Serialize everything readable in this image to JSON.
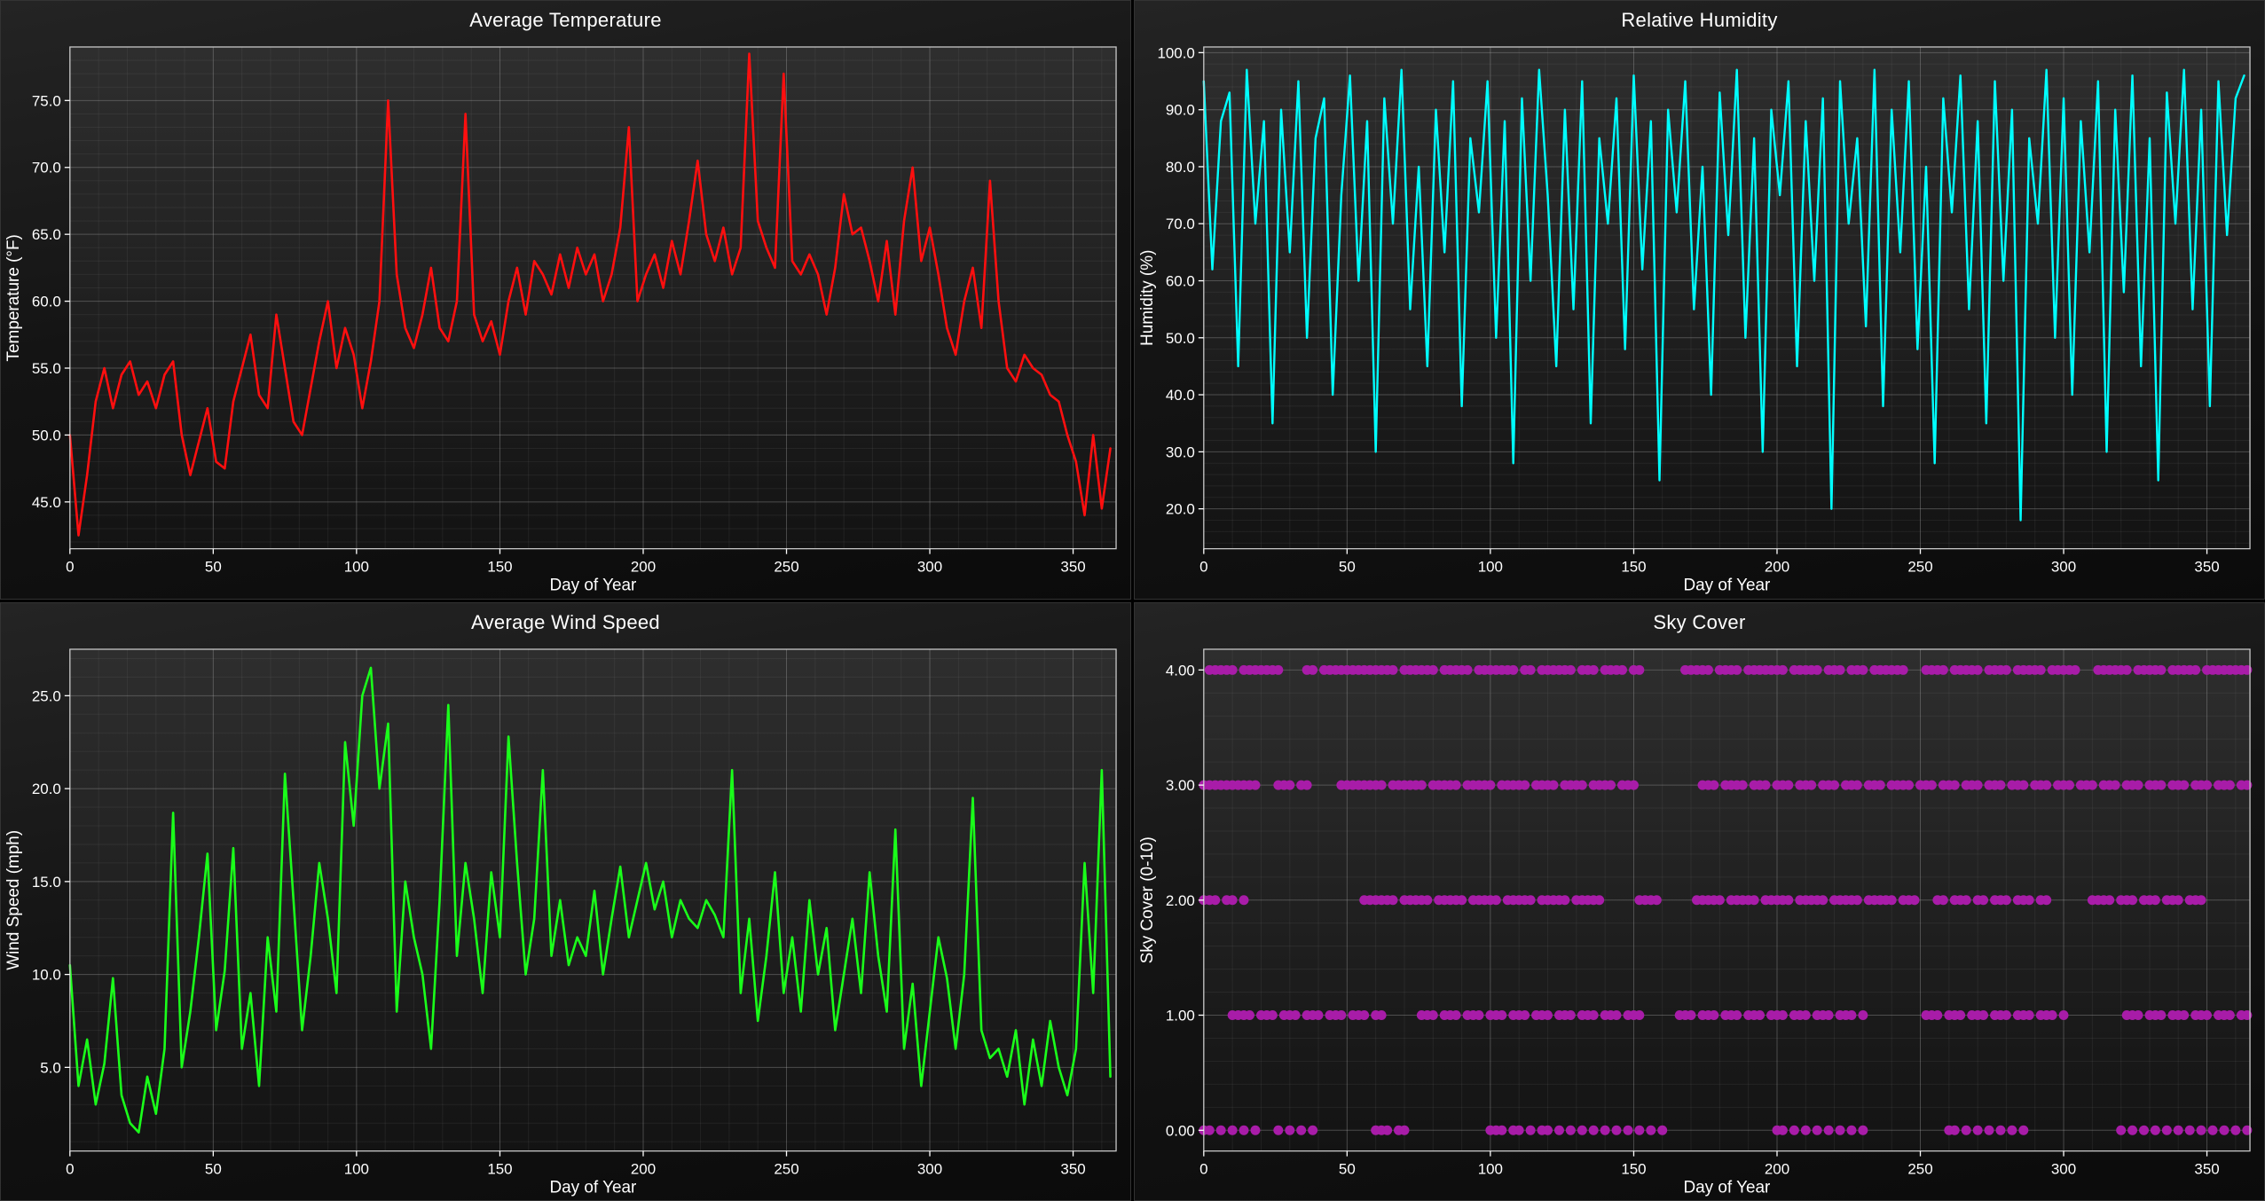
{
  "page": {
    "background": "#000000"
  },
  "chart_data": [
    {
      "id": "average-temperature",
      "type": "line",
      "title": "Average Temperature",
      "xlabel": "Day of Year",
      "ylabel": "Temperature (°F)",
      "color": "#ff0f0f",
      "line_width": 2.6,
      "xlim": [
        0,
        365
      ],
      "ylim": [
        41.5,
        79
      ],
      "xticks": [
        0,
        50,
        100,
        150,
        200,
        250,
        300,
        350
      ],
      "xtick_labels": [
        "0",
        "50",
        "100",
        "150",
        "200",
        "250",
        "300",
        "350"
      ],
      "yticks": [
        45,
        50,
        55,
        60,
        65,
        70,
        75
      ],
      "ytick_labels": [
        "45.0",
        "50.0",
        "55.0",
        "60.0",
        "65.0",
        "70.0",
        "75.0"
      ],
      "xminor": 10,
      "yminor": 1,
      "x_start": 0,
      "x_step": 3,
      "y": [
        50,
        42.5,
        47,
        52.5,
        55,
        52,
        54.5,
        55.5,
        53,
        54,
        52,
        54.5,
        55.5,
        50,
        47,
        49.5,
        52,
        48,
        47.5,
        52.5,
        55,
        57.5,
        53,
        52,
        59,
        55,
        51,
        50,
        53.5,
        57,
        60,
        55,
        58,
        56,
        52,
        55.5,
        60,
        75,
        62,
        58,
        56.5,
        59,
        62.5,
        58,
        57,
        60,
        74,
        59,
        57,
        58.5,
        56,
        60,
        62.5,
        59,
        63,
        62,
        60.5,
        63.5,
        61,
        64,
        62,
        63.5,
        60,
        62,
        65.5,
        73,
        60,
        62,
        63.5,
        61,
        64.5,
        62,
        66,
        70.5,
        65,
        63,
        65.5,
        62,
        64,
        78.5,
        66,
        64,
        62.5,
        77,
        63,
        62,
        63.5,
        62,
        59,
        62.5,
        68,
        65,
        65.5,
        63,
        60,
        64.5,
        59,
        66,
        70,
        63,
        65.5,
        62,
        58,
        56,
        60,
        62.5,
        58,
        69,
        60,
        55,
        54,
        56,
        55,
        54.5,
        53,
        52.5,
        50,
        48,
        44,
        50,
        44.5,
        49
      ]
    },
    {
      "id": "relative-humidity",
      "type": "line",
      "title": "Relative Humidity",
      "xlabel": "Day of Year",
      "ylabel": "Humidity (%)",
      "color": "#00ffff",
      "line_width": 2.4,
      "xlim": [
        0,
        365
      ],
      "ylim": [
        13,
        101
      ],
      "xticks": [
        0,
        50,
        100,
        150,
        200,
        250,
        300,
        350
      ],
      "xtick_labels": [
        "0",
        "50",
        "100",
        "150",
        "200",
        "250",
        "300",
        "350"
      ],
      "yticks": [
        20,
        30,
        40,
        50,
        60,
        70,
        80,
        90,
        100
      ],
      "ytick_labels": [
        "20.0",
        "30.0",
        "40.0",
        "50.0",
        "60.0",
        "70.0",
        "80.0",
        "90.0",
        "100.0"
      ],
      "xminor": 10,
      "yminor": 2,
      "x_start": 0,
      "x_step": 3,
      "y": [
        95,
        62,
        88,
        93,
        45,
        97,
        70,
        88,
        35,
        90,
        65,
        95,
        50,
        85,
        92,
        40,
        75,
        96,
        60,
        88,
        30,
        92,
        70,
        97,
        55,
        80,
        45,
        90,
        65,
        95,
        38,
        85,
        72,
        95,
        50,
        88,
        28,
        92,
        60,
        97,
        75,
        45,
        90,
        55,
        95,
        35,
        85,
        70,
        92,
        48,
        96,
        62,
        88,
        25,
        90,
        72,
        95,
        55,
        80,
        40,
        93,
        68,
        97,
        50,
        85,
        30,
        90,
        75,
        95,
        45,
        88,
        60,
        92,
        20,
        95,
        70,
        85,
        52,
        97,
        38,
        90,
        65,
        95,
        48,
        80,
        28,
        92,
        72,
        96,
        55,
        88,
        35,
        95,
        60,
        90,
        18,
        85,
        70,
        97,
        50,
        92,
        40,
        88,
        65,
        95,
        30,
        90,
        58,
        96,
        45,
        85,
        25,
        93,
        70,
        97,
        55,
        90,
        38,
        95,
        68,
        92,
        96
      ]
    },
    {
      "id": "average-wind-speed",
      "type": "line",
      "title": "Average Wind Speed",
      "xlabel": "Day of Year",
      "ylabel": "Wind Speed (mph)",
      "color": "#1aff1a",
      "line_width": 2.6,
      "xlim": [
        0,
        365
      ],
      "ylim": [
        0.5,
        27.5
      ],
      "xticks": [
        0,
        50,
        100,
        150,
        200,
        250,
        300,
        350
      ],
      "xtick_labels": [
        "0",
        "50",
        "100",
        "150",
        "200",
        "250",
        "300",
        "350"
      ],
      "yticks": [
        5,
        10,
        15,
        20,
        25
      ],
      "ytick_labels": [
        "5.0",
        "10.0",
        "15.0",
        "20.0",
        "25.0"
      ],
      "xminor": 10,
      "yminor": 1,
      "x_start": 0,
      "x_step": 3,
      "y": [
        10.5,
        4,
        6.5,
        3,
        5.2,
        9.8,
        3.5,
        2,
        1.5,
        4.5,
        2.5,
        6,
        18.7,
        5,
        8,
        12,
        16.5,
        7,
        10.2,
        16.8,
        6,
        9,
        4,
        12,
        8,
        20.8,
        14,
        7,
        11,
        16,
        13,
        9,
        22.5,
        18,
        25,
        26.5,
        20,
        23.5,
        8,
        15,
        12,
        10,
        6,
        14,
        24.5,
        11,
        16,
        13,
        9,
        15.5,
        12,
        22.8,
        16,
        10,
        13,
        21,
        11,
        14,
        10.5,
        12,
        11,
        14.5,
        10,
        13,
        15.8,
        12,
        14,
        16,
        13.5,
        15,
        12,
        14,
        13,
        12.5,
        14,
        13.2,
        12,
        21,
        9,
        13,
        7.5,
        11,
        15.5,
        9,
        12,
        8,
        14,
        10,
        12.5,
        7,
        10,
        13,
        9,
        15.5,
        11,
        8,
        17.8,
        6,
        9.5,
        4,
        8,
        12,
        9.8,
        6,
        10,
        19.5,
        7,
        5.5,
        6,
        4.5,
        7,
        3,
        6.5,
        4,
        7.5,
        5,
        3.5,
        6,
        16,
        9,
        21,
        4.5
      ]
    },
    {
      "id": "sky-cover",
      "type": "scatter",
      "title": "Sky Cover",
      "xlabel": "Day of Year",
      "ylabel": "Sky Cover (0-10)",
      "color": "#a81ca8",
      "marker_radius": 5.5,
      "xlim": [
        0,
        365
      ],
      "ylim": [
        -0.18,
        4.18
      ],
      "xticks": [
        0,
        50,
        100,
        150,
        200,
        250,
        300,
        350
      ],
      "xtick_labels": [
        "0",
        "50",
        "100",
        "150",
        "200",
        "250",
        "300",
        "350"
      ],
      "yticks": [
        0,
        1,
        2,
        3,
        4
      ],
      "ytick_labels": [
        "0.00",
        "1.00",
        "2.00",
        "3.00",
        "4.00"
      ],
      "xminor": 10,
      "yminor": 0.2,
      "levels": {
        "4": [
          2,
          4,
          6,
          8,
          10,
          14,
          16,
          18,
          20,
          22,
          24,
          26,
          36,
          38,
          42,
          44,
          46,
          48,
          50,
          52,
          54,
          56,
          58,
          60,
          62,
          64,
          66,
          70,
          72,
          74,
          76,
          78,
          80,
          84,
          86,
          88,
          90,
          92,
          96,
          98,
          100,
          102,
          104,
          106,
          108,
          112,
          114,
          118,
          120,
          122,
          124,
          126,
          128,
          132,
          134,
          136,
          140,
          142,
          144,
          146,
          150,
          152,
          168,
          170,
          172,
          174,
          176,
          180,
          182,
          184,
          186,
          190,
          192,
          194,
          196,
          198,
          200,
          202,
          206,
          208,
          210,
          212,
          214,
          218,
          220,
          222,
          226,
          228,
          230,
          234,
          236,
          238,
          240,
          242,
          244,
          252,
          254,
          256,
          258,
          262,
          264,
          266,
          268,
          270,
          274,
          276,
          278,
          280,
          284,
          286,
          288,
          290,
          292,
          296,
          298,
          300,
          302,
          304,
          312,
          314,
          316,
          318,
          320,
          322,
          326,
          328,
          330,
          332,
          334,
          338,
          340,
          342,
          344,
          346,
          350,
          352,
          354,
          356,
          358,
          360,
          362,
          364
        ],
        "3": [
          0,
          2,
          4,
          6,
          8,
          10,
          12,
          14,
          16,
          18,
          26,
          28,
          30,
          34,
          36,
          48,
          50,
          52,
          54,
          56,
          58,
          60,
          62,
          66,
          68,
          70,
          72,
          74,
          76,
          80,
          82,
          84,
          86,
          88,
          92,
          94,
          96,
          98,
          100,
          104,
          106,
          108,
          110,
          112,
          116,
          118,
          120,
          122,
          126,
          128,
          130,
          132,
          136,
          138,
          140,
          142,
          146,
          148,
          150,
          174,
          176,
          178,
          182,
          184,
          186,
          188,
          192,
          194,
          196,
          200,
          202,
          204,
          208,
          210,
          212,
          216,
          218,
          220,
          224,
          226,
          228,
          232,
          234,
          236,
          240,
          242,
          244,
          246,
          250,
          252,
          254,
          258,
          260,
          262,
          266,
          268,
          270,
          274,
          276,
          278,
          282,
          284,
          286,
          290,
          292,
          294,
          298,
          300,
          302,
          306,
          308,
          310,
          314,
          316,
          318,
          322,
          324,
          326,
          330,
          332,
          334,
          338,
          340,
          342,
          346,
          348,
          350,
          354,
          356,
          358,
          362,
          364
        ],
        "2": [
          0,
          2,
          4,
          8,
          10,
          14,
          56,
          58,
          60,
          62,
          64,
          66,
          70,
          72,
          74,
          76,
          78,
          82,
          84,
          86,
          88,
          90,
          94,
          96,
          98,
          100,
          102,
          106,
          108,
          110,
          112,
          114,
          118,
          120,
          122,
          124,
          126,
          130,
          132,
          134,
          136,
          138,
          152,
          154,
          156,
          158,
          172,
          174,
          176,
          178,
          180,
          184,
          186,
          188,
          190,
          192,
          196,
          198,
          200,
          202,
          204,
          208,
          210,
          212,
          214,
          216,
          220,
          222,
          224,
          226,
          228,
          232,
          234,
          236,
          238,
          240,
          244,
          246,
          248,
          256,
          258,
          262,
          264,
          266,
          270,
          272,
          276,
          278,
          280,
          284,
          286,
          288,
          292,
          294,
          310,
          312,
          314,
          316,
          320,
          322,
          324,
          328,
          330,
          332,
          336,
          338,
          340,
          344,
          346,
          348
        ],
        "1": [
          10,
          12,
          14,
          16,
          20,
          22,
          24,
          28,
          30,
          32,
          36,
          38,
          40,
          44,
          46,
          48,
          52,
          54,
          56,
          60,
          62,
          76,
          78,
          80,
          84,
          86,
          88,
          92,
          94,
          96,
          100,
          102,
          104,
          108,
          110,
          112,
          116,
          118,
          120,
          124,
          126,
          128,
          132,
          134,
          136,
          140,
          142,
          144,
          148,
          150,
          152,
          166,
          168,
          170,
          174,
          176,
          178,
          182,
          184,
          186,
          190,
          192,
          194,
          198,
          200,
          202,
          206,
          208,
          210,
          214,
          216,
          218,
          222,
          224,
          226,
          230,
          252,
          254,
          256,
          260,
          262,
          264,
          268,
          270,
          272,
          276,
          278,
          280,
          284,
          286,
          288,
          292,
          294,
          296,
          300,
          322,
          324,
          326,
          330,
          332,
          334,
          338,
          340,
          342,
          346,
          348,
          350,
          354,
          356,
          358,
          362,
          364
        ],
        "0": [
          0,
          2,
          6,
          10,
          14,
          18,
          26,
          30,
          34,
          38,
          60,
          62,
          64,
          68,
          70,
          100,
          102,
          104,
          108,
          110,
          114,
          118,
          120,
          124,
          128,
          132,
          136,
          140,
          144,
          148,
          152,
          156,
          160,
          200,
          202,
          206,
          210,
          214,
          218,
          222,
          226,
          230,
          260,
          262,
          266,
          270,
          274,
          278,
          282,
          286,
          320,
          324,
          328,
          332,
          336,
          340,
          344,
          348,
          352,
          356,
          360,
          364
        ]
      }
    }
  ]
}
